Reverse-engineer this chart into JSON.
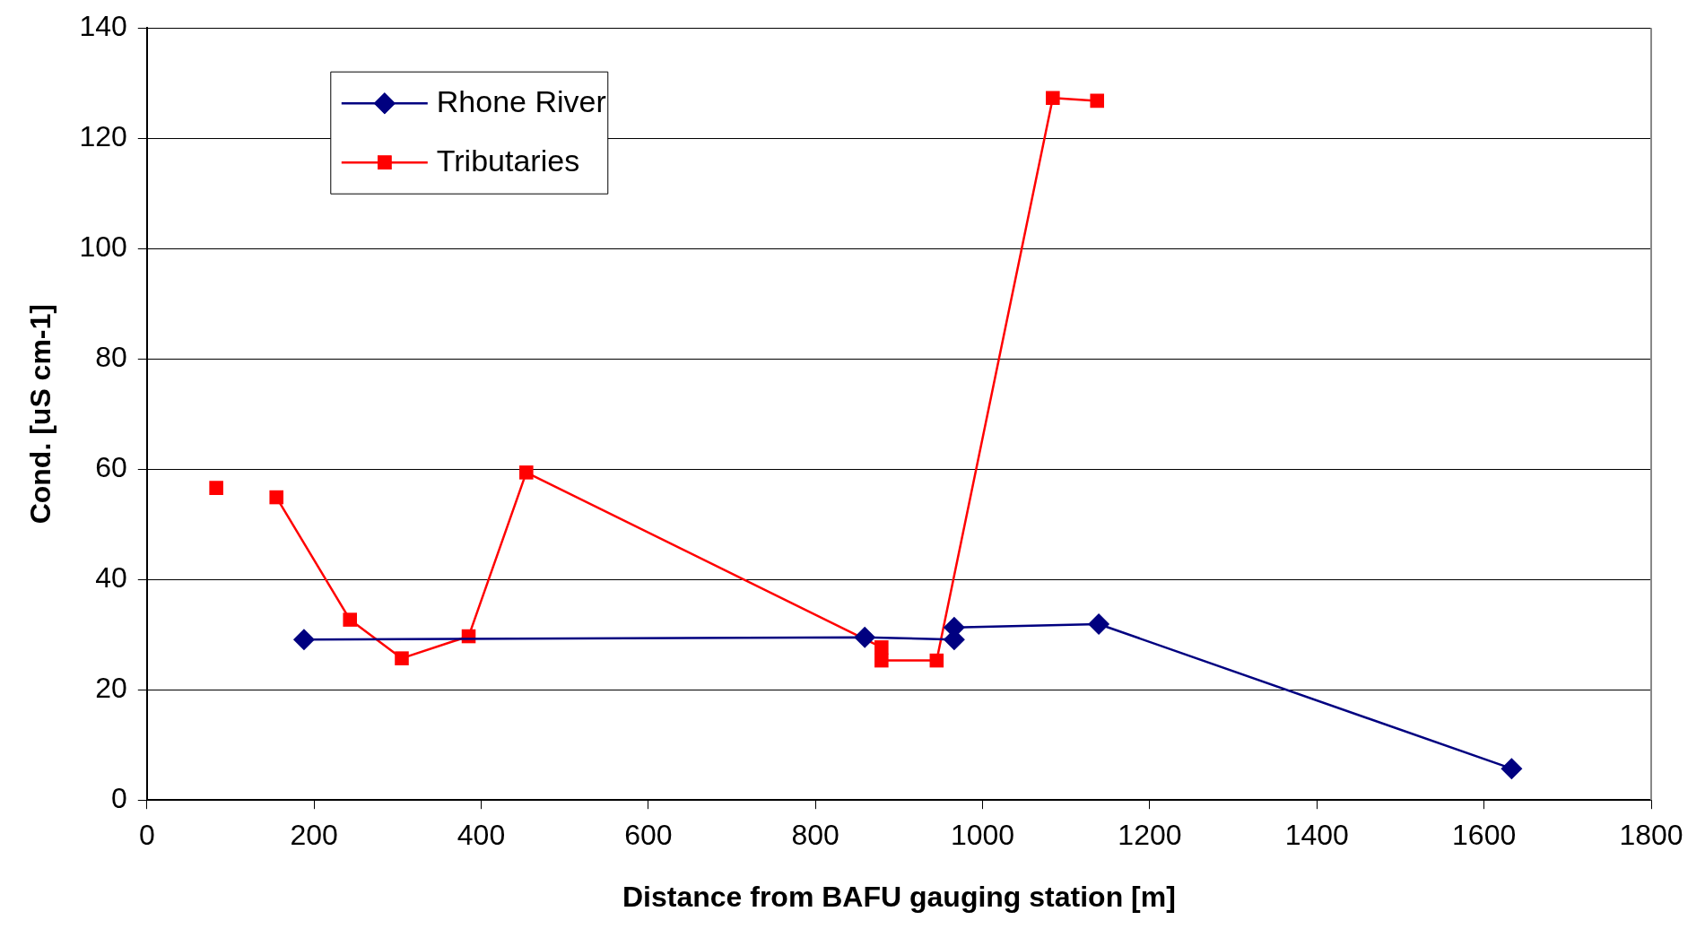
{
  "chart_data": {
    "type": "line",
    "xlabel": "Distance from BAFU gauging station [m]",
    "ylabel": "Cond. [uS cm-1]",
    "xlim": [
      0,
      1800
    ],
    "xticks": [
      0,
      200,
      400,
      600,
      800,
      1000,
      1200,
      1400,
      1600,
      1800
    ],
    "ylim": [
      0,
      140
    ],
    "yticks": [
      0,
      20,
      40,
      60,
      80,
      100,
      120,
      140
    ],
    "grid": "y",
    "legend": "top left",
    "line_style": "solid",
    "series": [
      {
        "name": "Rhone River",
        "color": "#000080",
        "marker": "diamond",
        "x": [
          188,
          859,
          966,
          966,
          1139,
          1633
        ],
        "values": [
          29.1,
          29.5,
          29.1,
          31.3,
          31.9,
          5.7
        ]
      },
      {
        "name": "Tributaries",
        "color": "#ff0000",
        "marker": "square",
        "x": [
          83,
          null,
          155,
          243,
          305,
          385,
          454,
          879,
          879,
          945,
          1084,
          1137
        ],
        "values": [
          56.6,
          null,
          54.9,
          32.7,
          25.7,
          29.7,
          59.4,
          27.7,
          25.3,
          25.3,
          127.3,
          126.8
        ]
      }
    ]
  }
}
